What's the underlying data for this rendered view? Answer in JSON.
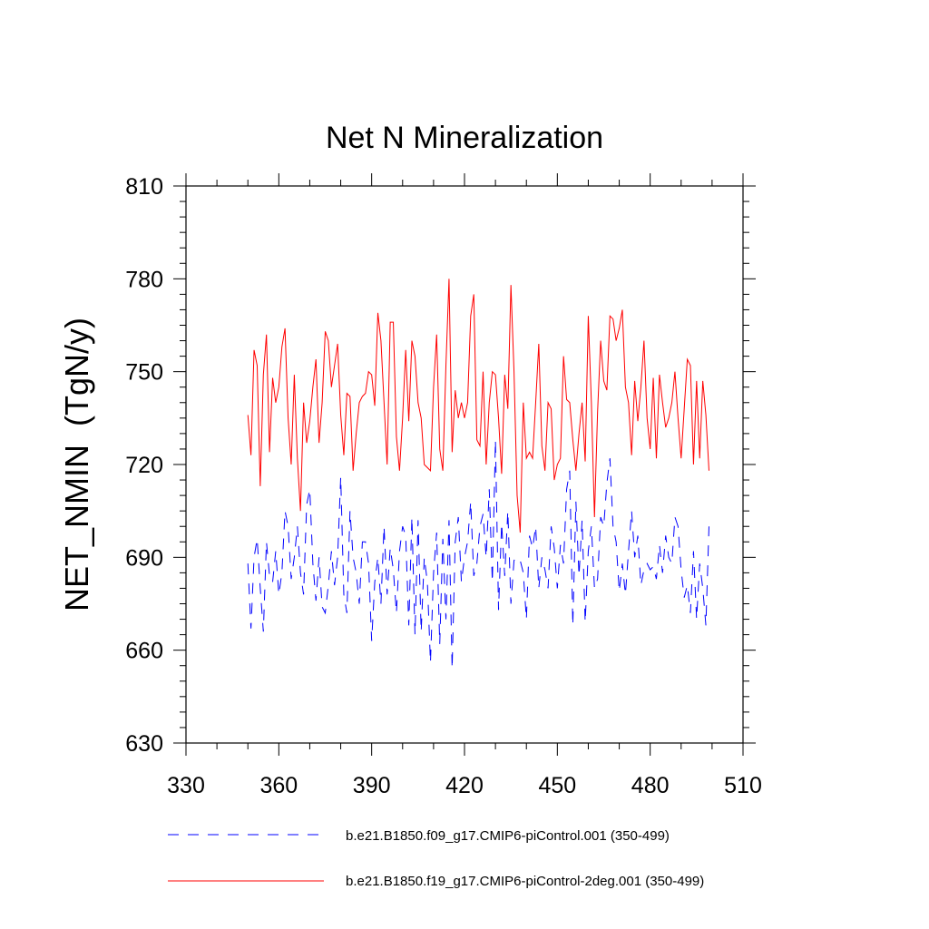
{
  "chart_data": {
    "type": "line",
    "title": "Net N Mineralization",
    "xlabel": "",
    "ylabel": "NET_NMIN  (TgN/y)",
    "xlim": [
      330,
      510
    ],
    "ylim": [
      630,
      810
    ],
    "xticks": [
      330,
      360,
      390,
      420,
      450,
      480,
      510
    ],
    "yticks": [
      630,
      660,
      690,
      720,
      750,
      780,
      810
    ],
    "x_minor_step": 10,
    "y_minor_step": 5,
    "grid": false,
    "legend_position": "bottom",
    "series": [
      {
        "name": "b.e21.B1850.f09_g17.CMIP6-piControl.001 (350-499)",
        "color": "#0000ff",
        "style": "dashed",
        "x_start": 350,
        "values": [
          688,
          667,
          690,
          696,
          680,
          666,
          695,
          684,
          682,
          692,
          678,
          685,
          705,
          700,
          683,
          690,
          700,
          685,
          678,
          707,
          712,
          688,
          676,
          690,
          674,
          672,
          681,
          692,
          681,
          690,
          716,
          678,
          672,
          705,
          690,
          685,
          675,
          695,
          695,
          688,
          663,
          682,
          690,
          675,
          700,
          678,
          693,
          686,
          672,
          692,
          700,
          697,
          668,
          703,
          665,
          702,
          666,
          690,
          682,
          656,
          685,
          698,
          662,
          696,
          670,
          702,
          654,
          695,
          703,
          682,
          690,
          695,
          708,
          684,
          688,
          700,
          704,
          690,
          712,
          682,
          728,
          673,
          701,
          684,
          705,
          675,
          689,
          690,
          689,
          685,
          670,
          697,
          693,
          700,
          680,
          690,
          686,
          680,
          700,
          693,
          680,
          694,
          688,
          712,
          718,
          668,
          708,
          684,
          702,
          669,
          692,
          700,
          680,
          683,
          703,
          700,
          714,
          722,
          700,
          695,
          679,
          688,
          678,
          692,
          705,
          690,
          697,
          681,
          686,
          688,
          686,
          687,
          683,
          694,
          685,
          697,
          690,
          688,
          703,
          700,
          686,
          677,
          681,
          672,
          692,
          670,
          688,
          680,
          668,
          700
        ]
      },
      {
        "name": "b.e21.B1850.f19_g17.CMIP6-piControl-2deg.001 (350-499)",
        "color": "#ff0000",
        "style": "solid",
        "x_start": 350,
        "values": [
          736,
          723,
          757,
          752,
          713,
          749,
          762,
          724,
          748,
          740,
          745,
          758,
          764,
          735,
          720,
          749,
          722,
          705,
          740,
          727,
          734,
          745,
          754,
          727,
          740,
          763,
          760,
          745,
          752,
          759,
          736,
          723,
          743,
          742,
          718,
          730,
          740,
          742,
          743,
          750,
          749,
          739,
          769,
          760,
          740,
          720,
          766,
          766,
          729,
          718,
          735,
          757,
          734,
          760,
          755,
          740,
          735,
          720,
          719,
          718,
          745,
          762,
          725,
          718,
          752,
          780,
          724,
          744,
          735,
          740,
          735,
          740,
          768,
          775,
          728,
          726,
          750,
          720,
          740,
          750,
          749,
          735,
          717,
          749,
          738,
          778,
          750,
          710,
          698,
          740,
          722,
          724,
          722,
          740,
          759,
          726,
          718,
          740,
          738,
          715,
          720,
          722,
          755,
          741,
          740,
          728,
          718,
          730,
          740,
          721,
          768,
          740,
          703,
          737,
          760,
          747,
          744,
          768,
          767,
          760,
          764,
          770,
          745,
          740,
          723,
          747,
          734,
          745,
          760,
          735,
          725,
          748,
          722,
          749,
          740,
          732,
          735,
          740,
          750,
          735,
          722,
          738,
          754,
          752,
          720,
          747,
          722,
          747,
          736,
          718
        ]
      }
    ]
  }
}
